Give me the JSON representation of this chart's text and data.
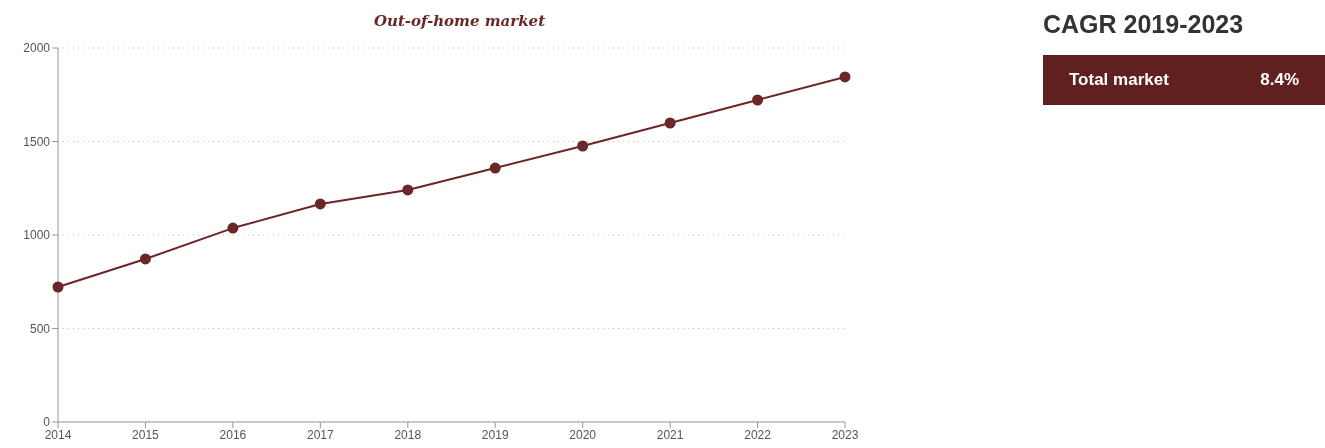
{
  "chart_data": [
    {
      "type": "line",
      "title": "Out-of-home market",
      "categories": [
        "2014",
        "2015",
        "2016",
        "2017",
        "2018",
        "2019",
        "2020",
        "2021",
        "2022",
        "2023"
      ],
      "series": [
        {
          "color": "#6b2626",
          "values": [
            722,
            872,
            1037,
            1166,
            1241,
            1358,
            1476,
            1599,
            1722,
            1845
          ]
        }
      ],
      "ylim": [
        0,
        2000
      ],
      "yticks": [
        0,
        500,
        1000,
        1500,
        2000
      ],
      "grid": "y",
      "marker": "circle",
      "line_style": "solid"
    },
    {
      "type": "other",
      "title": "CAGR 2019-2023",
      "annotations": [
        "Total market",
        "8.4%"
      ],
      "color": "#612020"
    }
  ]
}
